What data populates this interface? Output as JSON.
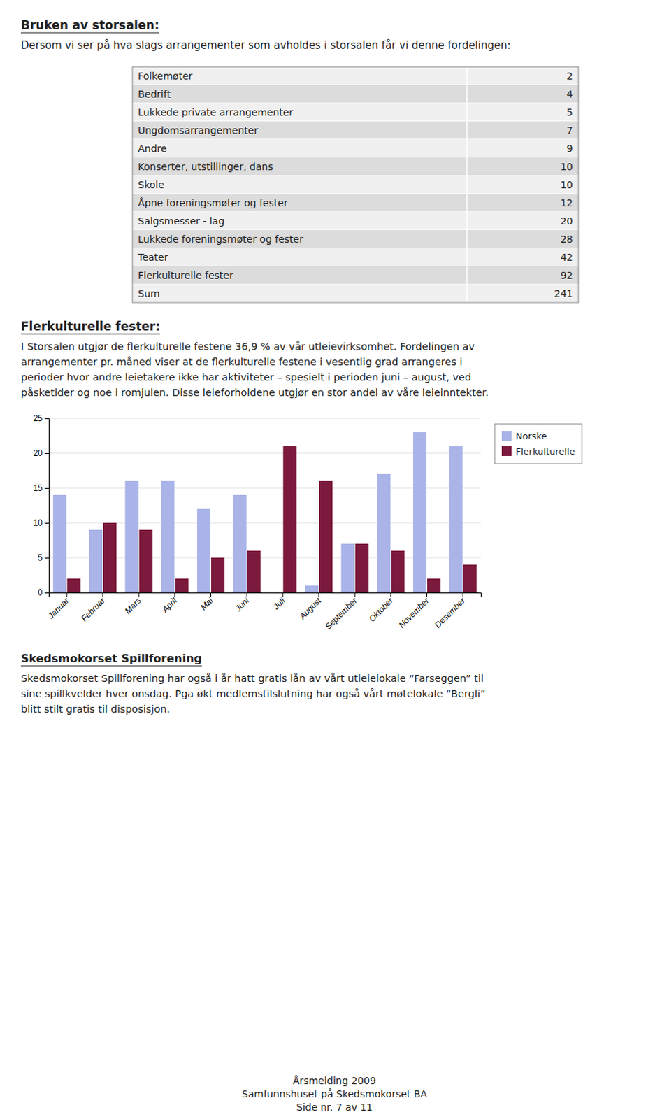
{
  "title": "Bruken av storsalen:",
  "intro": "Dersom vi ser på hva slags arrangementer som avholdes i storsalen får vi denne fordelingen:",
  "table": [
    {
      "label": "Folkemøter",
      "value": 2
    },
    {
      "label": "Bedrift",
      "value": 4
    },
    {
      "label": "Lukkede private arrangementer",
      "value": 5
    },
    {
      "label": "Ungdomsarrangementer",
      "value": 7
    },
    {
      "label": "Andre",
      "value": 9
    },
    {
      "label": "Konserter, utstillinger, dans",
      "value": 10
    },
    {
      "label": "Skole",
      "value": 10
    },
    {
      "label": "Åpne foreningsmøter og fester",
      "value": 12
    },
    {
      "label": "Salgsmesser - lag",
      "value": 20
    },
    {
      "label": "Lukkede foreningsmøter og fester",
      "value": 28
    },
    {
      "label": "Teater",
      "value": 42
    },
    {
      "label": "Flerkulturelle fester",
      "value": 92
    },
    {
      "label": "Sum",
      "value": 241
    }
  ],
  "section_heading": "Flerkulturelle fester:",
  "section_lines": [
    "I Storsalen utgjør de flerkulturelle festene 36,9 % av vår utleievirksomhet. Fordelingen av",
    "arrangementer pr. måned viser at de flerkulturelle festene i vesentlig grad arrangeres i",
    "perioder hvor andre leietakere ikke har aktiviteter – spesielt i perioden juni – august, ved",
    "påsketider og noe i romjulen. Disse leieforholdene utgjør en stor andel av våre leieinntekter."
  ],
  "chart_data": {
    "type": "bar",
    "categories": [
      "Januar",
      "Februar",
      "Mars",
      "April",
      "Mai",
      "Juni",
      "Juli",
      "August",
      "September",
      "Oktober",
      "November",
      "Desember"
    ],
    "series": [
      {
        "name": "Norske",
        "color": "#aab4e8",
        "values": [
          14,
          9,
          16,
          16,
          12,
          14,
          0,
          1,
          7,
          17,
          23,
          21
        ]
      },
      {
        "name": "Flerkulturelle",
        "color": "#7b1a3c",
        "values": [
          2,
          10,
          9,
          2,
          5,
          6,
          21,
          16,
          7,
          6,
          2,
          4
        ]
      }
    ],
    "ylim": [
      0,
      25
    ],
    "yticks": [
      0,
      5,
      10,
      15,
      20,
      25
    ],
    "grid": true,
    "legend": "right"
  },
  "footer_heading": "Skedsmokorset Spillforening",
  "footer_lines": [
    "Skedsmokorset Spillforening har også i år hatt gratis lån av vårt utleielokale “Farseggen” til",
    "sine spillkvelder hver onsdag. Pga økt medlemstilslutning har også vårt møtelokale “Bergli”",
    "blitt stilt gratis til disposisjon."
  ],
  "page_footer": [
    "Årsmelding 2009",
    "Samfunnshuset på Skedsmokorset BA",
    "Side nr. 7 av 11"
  ]
}
